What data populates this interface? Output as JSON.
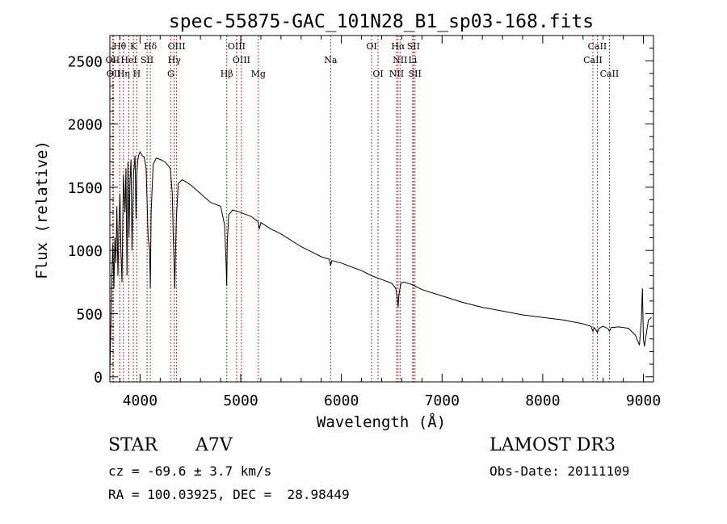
{
  "chart_data": {
    "type": "line",
    "title": "spec-55875-GAC_101N28_B1_sp03-168.fits",
    "xlabel": "Wavelength (Å)",
    "ylabel": "Flux (relative)",
    "xlim": [
      3700,
      9100
    ],
    "ylim": [
      -40,
      2700
    ],
    "xticks": [
      4000,
      5000,
      6000,
      7000,
      8000,
      9000
    ],
    "yticks": [
      0,
      500,
      1000,
      1500,
      2000,
      2500
    ],
    "grid": false,
    "series": [
      {
        "name": "spectrum",
        "x": [
          3700,
          3710,
          3720,
          3730,
          3740,
          3750,
          3760,
          3770,
          3780,
          3790,
          3800,
          3810,
          3820,
          3835,
          3850,
          3860,
          3870,
          3880,
          3890,
          3900,
          3910,
          3920,
          3935,
          3950,
          3960,
          3968,
          3975,
          3985,
          4000,
          4020,
          4040,
          4060,
          4080,
          4095,
          4102,
          4110,
          4130,
          4160,
          4200,
          4250,
          4300,
          4320,
          4330,
          4340,
          4345,
          4350,
          4360,
          4380,
          4420,
          4500,
          4600,
          4700,
          4800,
          4840,
          4855,
          4861,
          4866,
          4880,
          4920,
          5000,
          5100,
          5170,
          5185,
          5200,
          5300,
          5400,
          5500,
          5600,
          5700,
          5800,
          5880,
          5893,
          5905,
          6000,
          6100,
          6200,
          6300,
          6400,
          6500,
          6540,
          6555,
          6563,
          6570,
          6590,
          6620,
          6700,
          6800,
          7000,
          7200,
          7400,
          7600,
          7800,
          8000,
          8200,
          8400,
          8480,
          8498,
          8510,
          8530,
          8542,
          8560,
          8600,
          8650,
          8662,
          8680,
          8750,
          8850,
          8920,
          8960,
          8980,
          8990,
          9000,
          9010,
          9030,
          9050,
          9080
        ],
        "y": [
          20,
          400,
          800,
          1050,
          700,
          1100,
          900,
          1350,
          800,
          1200,
          1450,
          1000,
          750,
          1600,
          1300,
          1650,
          800,
          1700,
          1100,
          1550,
          1720,
          1000,
          1600,
          1750,
          1250,
          1600,
          1700,
          1750,
          1780,
          1750,
          1740,
          1650,
          1100,
          1000,
          700,
          1300,
          1680,
          1730,
          1720,
          1700,
          1650,
          1450,
          1100,
          850,
          700,
          900,
          1250,
          1530,
          1560,
          1520,
          1450,
          1380,
          1350,
          1200,
          900,
          720,
          1050,
          1280,
          1320,
          1300,
          1270,
          1230,
          1170,
          1220,
          1170,
          1130,
          1080,
          1030,
          990,
          950,
          930,
          880,
          920,
          900,
          870,
          840,
          800,
          770,
          740,
          700,
          620,
          550,
          640,
          740,
          750,
          730,
          690,
          640,
          590,
          550,
          520,
          490,
          470,
          450,
          420,
          400,
          360,
          390,
          370,
          350,
          385,
          400,
          380,
          360,
          390,
          395,
          385,
          330,
          250,
          450,
          700,
          300,
          240,
          350,
          450,
          470
        ]
      }
    ],
    "annotations": [
      {
        "label": "Hθ",
        "x": 3798,
        "row": 1
      },
      {
        "label": "K",
        "x": 3934,
        "row": 1
      },
      {
        "label": "Hδ",
        "x": 4102,
        "row": 1
      },
      {
        "label": "OIII",
        "x": 4363,
        "row": 1
      },
      {
        "label": "OIII",
        "x": 4959,
        "row": 1
      },
      {
        "label": "OI",
        "x": 6300,
        "row": 1
      },
      {
        "label": "Hα",
        "x": 6563,
        "row": 1
      },
      {
        "label": "SII",
        "x": 6716,
        "row": 1
      },
      {
        "label": "CaII",
        "x": 8542,
        "row": 1
      },
      {
        "label": "OII",
        "x": 3727,
        "row": 2
      },
      {
        "label": "HeI",
        "x": 3889,
        "row": 2
      },
      {
        "label": "SII",
        "x": 4070,
        "row": 2
      },
      {
        "label": "Hγ",
        "x": 4340,
        "row": 2
      },
      {
        "label": "OIII",
        "x": 5007,
        "row": 2
      },
      {
        "label": "Na",
        "x": 5893,
        "row": 2
      },
      {
        "label": "NII",
        "x": 6583,
        "row": 2
      },
      {
        "label": "Li",
        "x": 6708,
        "row": 2
      },
      {
        "label": "CaII",
        "x": 8498,
        "row": 2
      },
      {
        "label": "OII",
        "x": 3737,
        "row": 3
      },
      {
        "label": "Hη",
        "x": 3835,
        "row": 3
      },
      {
        "label": "H",
        "x": 3968,
        "row": 3
      },
      {
        "label": "G",
        "x": 4305,
        "row": 3
      },
      {
        "label": "Hβ",
        "x": 4861,
        "row": 3
      },
      {
        "label": "Mg",
        "x": 5175,
        "row": 3
      },
      {
        "label": "OI",
        "x": 6364,
        "row": 3
      },
      {
        "label": "NII",
        "x": 6548,
        "row": 3
      },
      {
        "label": "SII",
        "x": 6731,
        "row": 3
      },
      {
        "label": "CaII",
        "x": 8662,
        "row": 3
      }
    ]
  },
  "info": {
    "object_class": "STAR",
    "subclass": "A7V",
    "survey": "LAMOST DR3",
    "redshift": "cz = -69.6 ± 3.7 km/s",
    "obs_date": "Obs-Date: 20111109",
    "coords": "RA = 100.03925, DEC =  28.98449"
  }
}
